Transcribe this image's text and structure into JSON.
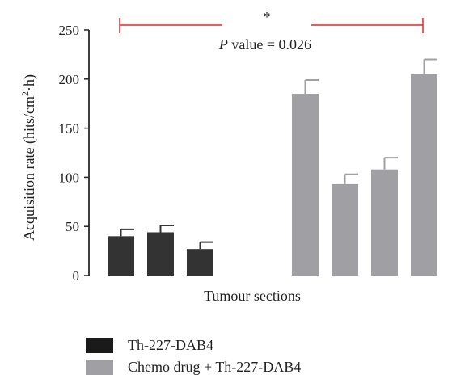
{
  "chart_data": {
    "type": "bar",
    "title": "",
    "xlabel": "Tumour sections",
    "ylabel": "Acquisition rate (hits/cm²·h)",
    "ylabel_parts": {
      "pre": "Acquisition rate (hits/cm",
      "sup": "2",
      "post": "·h)"
    },
    "ylim": [
      0,
      250
    ],
    "yticks": [
      "0",
      "50",
      "100",
      "150",
      "200",
      "250"
    ],
    "series": [
      {
        "name": "Th-227-DAB4",
        "color": "#333333",
        "values": [
          40,
          44,
          27
        ],
        "errors": [
          7,
          7,
          7
        ]
      },
      {
        "name": "Chemo drug + Th-227-DAB4",
        "color": "#a0a0a4",
        "values": [
          185,
          93,
          108,
          205
        ],
        "errors": [
          14,
          10,
          12,
          15
        ]
      }
    ],
    "annotation": {
      "asterisk": "*",
      "p_italic": "P",
      "p_text": " value = 0.026",
      "bracket_color": "#e0282a"
    }
  },
  "legend": {
    "items": [
      {
        "label": "Th-227-DAB4",
        "color": "#1a1a1a"
      },
      {
        "label": "Chemo drug + Th-227-DAB4",
        "color": "#a0a0a4"
      }
    ]
  }
}
